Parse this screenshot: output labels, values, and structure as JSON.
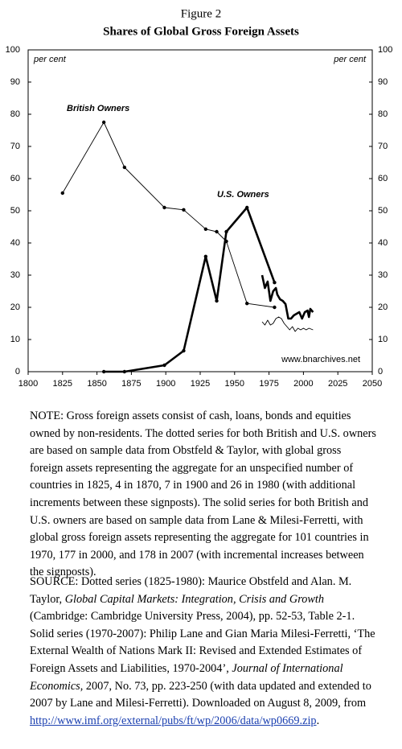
{
  "chart_data": {
    "type": "line",
    "figure_label": "Figure 2",
    "title": "Shares of Global Gross Foreign Assets",
    "y_unit_left": "per cent",
    "y_unit_right": "per cent",
    "annotations": [
      "British Owners",
      "U.S. Owners"
    ],
    "credit": "www.bnarchives.net",
    "xlim": [
      1800,
      2050
    ],
    "xticks": [
      1800,
      1825,
      1850,
      1875,
      1900,
      1925,
      1950,
      1975,
      2000,
      2025,
      2050
    ],
    "ylim": [
      0,
      100
    ],
    "yticks": [
      0,
      10,
      20,
      30,
      40,
      50,
      60,
      70,
      80,
      90,
      100
    ],
    "y2lim": [
      0,
      100
    ],
    "y2ticks": [
      0,
      10,
      20,
      30,
      40,
      50,
      60,
      70,
      80,
      90,
      100
    ],
    "series": [
      {
        "color": "#000",
        "style": "dotted",
        "weight": "thin",
        "x": [
          1825,
          1855,
          1870,
          1899,
          1913,
          1929,
          1937,
          1944,
          1959,
          1979
        ],
        "values": [
          55.5,
          77.5,
          63.5,
          51,
          50.3,
          44.3,
          43.5,
          40.5,
          21.2,
          20
        ]
      },
      {
        "color": "#000",
        "style": "dotted",
        "weight": "thick",
        "x": [
          1855,
          1870,
          1899,
          1913,
          1929,
          1937,
          1944,
          1959,
          1979
        ],
        "values": [
          0,
          0,
          2,
          6.5,
          35.8,
          22,
          43.5,
          51,
          27.7
        ]
      },
      {
        "color": "#000",
        "style": "solid",
        "weight": "thin",
        "x": [
          1970,
          1972,
          1974,
          1976,
          1978,
          1980,
          1982,
          1984,
          1986,
          1988,
          1990,
          1992,
          1994,
          1996,
          1998,
          2000,
          2002,
          2004,
          2007
        ],
        "values": [
          15.5,
          14.5,
          16,
          14.5,
          15,
          16.5,
          17,
          16.5,
          15,
          14,
          13,
          14,
          12.5,
          13.5,
          13,
          13.5,
          13,
          13.5,
          13
        ]
      },
      {
        "color": "#000",
        "style": "solid",
        "weight": "thick",
        "x": [
          1970,
          1972,
          1974,
          1976,
          1978,
          1980,
          1981,
          1983,
          1985,
          1987,
          1989,
          1991,
          1993,
          1995,
          1997,
          1999,
          2001,
          2003,
          2004,
          2005,
          2007
        ],
        "values": [
          30,
          26,
          28,
          22,
          25,
          26,
          24,
          22.5,
          22,
          21,
          16.5,
          16.5,
          17.5,
          18,
          18.5,
          16.5,
          18.5,
          19,
          17,
          19.5,
          18.5
        ]
      }
    ]
  },
  "note": "NOTE: Gross foreign assets consist of cash, loans, bonds and equities owned by non-residents. The dotted series for both British and U.S. owners are based on sample data from Obstfeld & Taylor, with global gross foreign assets representing the aggregate for an unspecified number of countries in 1825, 4 in 1870, 7 in 1900 and 26 in 1980 (with additional increments between these signposts). The solid series for both British and U.S. owners are based on sample data from Lane & Milesi-Ferretti, with global gross foreign assets representing the aggregate for 101 countries in 1970, 177 in 2000, and 178 in 2007 (with incremental increases between the signposts).",
  "source": [
    "SOURCE: Dotted series (1825-1980): Maurice Obstfeld and Alan. M. Taylor, ",
    "Global Capital Markets: Integration, Crisis and Growth",
    " (Cambridge: Cambridge University Press, 2004), pp. 52-53, Table 2-1. Solid series (1970-2007): Philip Lane and Gian Maria Milesi-Ferretti, ‘The External Wealth of Nations Mark II: Revised and Extended Estimates of Foreign Assets and Liabilities, 1970-2004’, ",
    "Journal of International Economics",
    ", 2007, No. 73, pp. 223-250 (with data updated and extended to 2007 by Lane and Milesi-Ferretti). Downloaded on August 8, 2009, from ",
    "http://www.imf.org/external/pubs/ft/wp/2006/data/wp0669.zip",
    "."
  ]
}
